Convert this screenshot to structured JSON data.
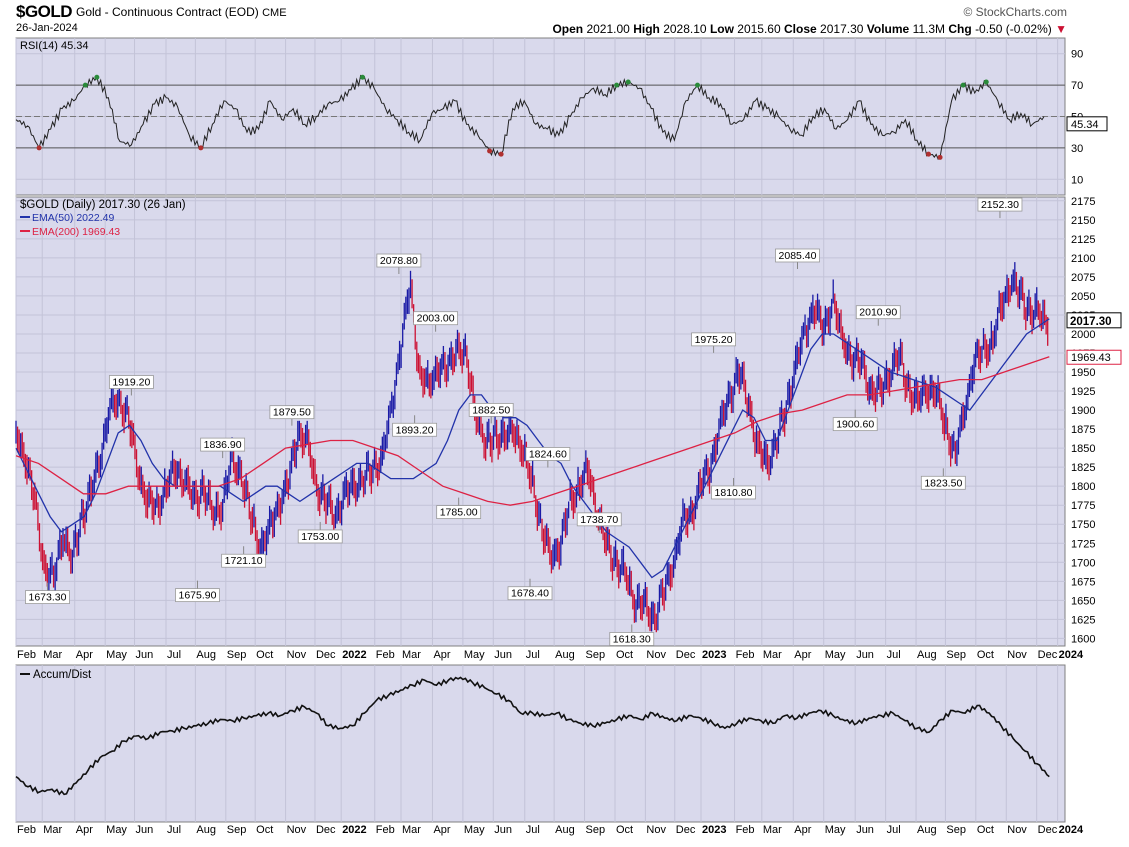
{
  "header": {
    "symbol": "$GOLD",
    "description": "Gold - Continuous Contract (EOD)",
    "exchange": "CME",
    "date": "26-Jan-2024",
    "brand": "© StockCharts.com",
    "open_label": "Open",
    "open": "2021.00",
    "high_label": "High",
    "high": "2028.10",
    "low_label": "Low",
    "low": "2015.60",
    "close_label": "Close",
    "close": "2017.30",
    "volume_label": "Volume",
    "volume": "11.3M",
    "chg_label": "Chg",
    "chg": "-0.50 (-0.02%)",
    "chg_arrow": "▼"
  },
  "colors": {
    "panel_bg": "#d9d9ec",
    "up": "#1a1aa6",
    "down": "#cc1133",
    "ema50": "#2233aa",
    "ema200": "#dd2244",
    "grid": "#c3c3d8"
  },
  "chart_data": [
    {
      "type": "line",
      "panel": "RSI",
      "label": "RSI(14) 45.34",
      "last_value_tag": "45.34",
      "ylim": [
        0,
        100
      ],
      "yticks": [
        "90",
        "70",
        "50",
        "30",
        "10"
      ],
      "levels": [
        70,
        30
      ],
      "series": [
        {
          "name": "RSI(14)",
          "values": [
            48,
            44,
            30,
            42,
            55,
            60,
            70,
            75,
            62,
            34,
            32,
            45,
            58,
            62,
            56,
            38,
            30,
            45,
            60,
            55,
            40,
            42,
            60,
            48,
            55,
            45,
            50,
            58,
            60,
            67,
            75,
            68,
            55,
            48,
            40,
            35,
            52,
            55,
            60,
            45,
            38,
            28,
            26,
            55,
            60,
            45,
            42,
            38,
            50,
            62,
            68,
            64,
            70,
            72,
            68,
            55,
            40,
            35,
            60,
            70,
            62,
            58,
            45,
            48,
            60,
            55,
            50,
            42,
            38,
            50,
            55,
            42,
            48,
            60,
            45,
            38,
            40,
            48,
            35,
            26,
            24,
            60,
            70,
            65,
            72,
            60,
            48,
            52,
            45,
            50
          ]
        }
      ]
    },
    {
      "type": "line",
      "panel": "Price",
      "title": "$GOLD (Daily) 2017.30 (26 Jan)",
      "legend": [
        {
          "name": "EMA(50) 2022.49"
        },
        {
          "name": "EMA(200) 1969.43"
        }
      ],
      "ylim": [
        1590,
        2180
      ],
      "yticks": [
        2175,
        2150,
        2125,
        2100,
        2075,
        2050,
        2025,
        2000,
        1975,
        1950,
        1925,
        1900,
        1875,
        1850,
        1825,
        1800,
        1775,
        1750,
        1725,
        1700,
        1675,
        1650,
        1625,
        1600
      ],
      "last_close_tag": "2017.30",
      "ema200_tag": "1969.43",
      "annotations": [
        {
          "label": "1673.30",
          "x": 0.03,
          "price": 1673.3,
          "pos": "below"
        },
        {
          "label": "1919.20",
          "x": 0.11,
          "price": 1919.2,
          "pos": "above"
        },
        {
          "label": "1675.90",
          "x": 0.173,
          "price": 1675.9,
          "pos": "below"
        },
        {
          "label": "1836.90",
          "x": 0.197,
          "price": 1836.9,
          "pos": "above"
        },
        {
          "label": "1721.10",
          "x": 0.217,
          "price": 1721.1,
          "pos": "below"
        },
        {
          "label": "1879.50",
          "x": 0.263,
          "price": 1879.5,
          "pos": "above"
        },
        {
          "label": "1753.00",
          "x": 0.29,
          "price": 1753.0,
          "pos": "below"
        },
        {
          "label": "2078.80",
          "x": 0.365,
          "price": 2078.8,
          "pos": "above"
        },
        {
          "label": "2003.00",
          "x": 0.4,
          "price": 2003.0,
          "pos": "above"
        },
        {
          "label": "1893.20",
          "x": 0.38,
          "price": 1893.2,
          "pos": "below"
        },
        {
          "label": "1882.50",
          "x": 0.453,
          "price": 1882.5,
          "pos": "above"
        },
        {
          "label": "1785.00",
          "x": 0.422,
          "price": 1785.0,
          "pos": "below"
        },
        {
          "label": "1824.60",
          "x": 0.507,
          "price": 1824.6,
          "pos": "above"
        },
        {
          "label": "1678.40",
          "x": 0.49,
          "price": 1678.4,
          "pos": "below"
        },
        {
          "label": "1738.70",
          "x": 0.556,
          "price": 1738.7,
          "pos": "above"
        },
        {
          "label": "1618.30",
          "x": 0.587,
          "price": 1618.3,
          "pos": "below"
        },
        {
          "label": "1975.20",
          "x": 0.665,
          "price": 1975.2,
          "pos": "above"
        },
        {
          "label": "1810.80",
          "x": 0.684,
          "price": 1810.8,
          "pos": "below"
        },
        {
          "label": "2085.40",
          "x": 0.745,
          "price": 2085.4,
          "pos": "above"
        },
        {
          "label": "2010.90",
          "x": 0.822,
          "price": 2010.9,
          "pos": "above"
        },
        {
          "label": "1900.60",
          "x": 0.8,
          "price": 1900.6,
          "pos": "below"
        },
        {
          "label": "1823.50",
          "x": 0.884,
          "price": 1823.5,
          "pos": "below"
        },
        {
          "label": "2152.30",
          "x": 0.938,
          "price": 2152.3,
          "pos": "above"
        }
      ],
      "series": [
        {
          "name": "$GOLD",
          "values": [
            1870,
            1840,
            1780,
            1700,
            1673,
            1740,
            1700,
            1760,
            1790,
            1840,
            1900,
            1915,
            1890,
            1820,
            1780,
            1770,
            1800,
            1820,
            1810,
            1780,
            1800,
            1760,
            1780,
            1830,
            1820,
            1760,
            1720,
            1740,
            1780,
            1800,
            1870,
            1860,
            1800,
            1780,
            1760,
            1790,
            1800,
            1810,
            1820,
            1840,
            1900,
            1990,
            2060,
            1950,
            1930,
            1960,
            1950,
            1990,
            1960,
            1900,
            1850,
            1870,
            1860,
            1880,
            1840,
            1810,
            1740,
            1710,
            1720,
            1780,
            1800,
            1820,
            1760,
            1720,
            1700,
            1680,
            1650,
            1640,
            1630,
            1660,
            1700,
            1750,
            1770,
            1800,
            1830,
            1880,
            1920,
            1950,
            1910,
            1850,
            1830,
            1860,
            1900,
            1960,
            2000,
            2040,
            2000,
            2050,
            1990,
            1970,
            1960,
            1930,
            1920,
            1950,
            1970,
            1930,
            1910,
            1930,
            1920,
            1880,
            1840,
            1900,
            1960,
            1980,
            1990,
            2040,
            2070,
            2050,
            2030,
            2025,
            2017
          ]
        },
        {
          "name": "EMA(50)",
          "values": [
            1850,
            1820,
            1790,
            1760,
            1740,
            1750,
            1760,
            1790,
            1830,
            1870,
            1880,
            1860,
            1830,
            1810,
            1800,
            1800,
            1800,
            1800,
            1800,
            1790,
            1780,
            1790,
            1800,
            1800,
            1790,
            1780,
            1790,
            1800,
            1810,
            1820,
            1830,
            1830,
            1820,
            1810,
            1810,
            1810,
            1820,
            1830,
            1860,
            1900,
            1920,
            1920,
            1900,
            1890,
            1890,
            1880,
            1860,
            1840,
            1830,
            1800,
            1780,
            1760,
            1740,
            1730,
            1720,
            1700,
            1680,
            1690,
            1720,
            1750,
            1780,
            1810,
            1840,
            1870,
            1900,
            1890,
            1860,
            1860,
            1900,
            1940,
            1980,
            2000,
            2000,
            1990,
            1980,
            1970,
            1960,
            1950,
            1945,
            1940,
            1935,
            1930,
            1920,
            1910,
            1900,
            1920,
            1940,
            1960,
            1980,
            2000,
            2010,
            2020
          ]
        },
        {
          "name": "EMA(200)",
          "values": [
            1840,
            1830,
            1810,
            1790,
            1790,
            1800,
            1800,
            1800,
            1800,
            1800,
            1810,
            1830,
            1850,
            1855,
            1860,
            1860,
            1850,
            1840,
            1820,
            1800,
            1790,
            1780,
            1775,
            1780,
            1790,
            1800,
            1810,
            1820,
            1830,
            1840,
            1850,
            1860,
            1870,
            1885,
            1895,
            1900,
            1910,
            1920,
            1920,
            1925,
            1930,
            1935,
            1940,
            1940,
            1950,
            1960,
            1970
          ]
        }
      ]
    },
    {
      "type": "line",
      "panel": "Accum/Dist",
      "label": "Accum/Dist",
      "series": [
        {
          "name": "Accum/Dist",
          "values": [
            20,
            12,
            8,
            10,
            6,
            15,
            25,
            35,
            40,
            48,
            52,
            50,
            55,
            56,
            58,
            60,
            62,
            65,
            64,
            66,
            68,
            70,
            68,
            72,
            75,
            70,
            60,
            58,
            60,
            70,
            80,
            84,
            88,
            92,
            96,
            92,
            96,
            98,
            94,
            90,
            85,
            80,
            70,
            70,
            68,
            70,
            65,
            62,
            60,
            62,
            65,
            68,
            65,
            70,
            66,
            64,
            68,
            66,
            62,
            58,
            62,
            66,
            64,
            62,
            68,
            66,
            70,
            72,
            68,
            64,
            62,
            66,
            68,
            70,
            64,
            58,
            55,
            65,
            72,
            70,
            76,
            70,
            60,
            50,
            40,
            30,
            20
          ]
        }
      ]
    }
  ],
  "x_axis": {
    "labels": [
      {
        "t": "Feb",
        "b": false,
        "x": 0.0
      },
      {
        "t": "Mar",
        "b": false,
        "x": 0.025
      },
      {
        "t": "Apr",
        "b": false,
        "x": 0.056
      },
      {
        "t": "May",
        "b": false,
        "x": 0.085
      },
      {
        "t": "Jun",
        "b": false,
        "x": 0.113
      },
      {
        "t": "Jul",
        "b": false,
        "x": 0.143
      },
      {
        "t": "Aug",
        "b": false,
        "x": 0.171
      },
      {
        "t": "Sep",
        "b": false,
        "x": 0.2
      },
      {
        "t": "Oct",
        "b": false,
        "x": 0.228
      },
      {
        "t": "Nov",
        "b": false,
        "x": 0.257
      },
      {
        "t": "Dec",
        "b": false,
        "x": 0.285
      },
      {
        "t": "2022",
        "b": true,
        "x": 0.31
      },
      {
        "t": "Feb",
        "b": false,
        "x": 0.342
      },
      {
        "t": "Mar",
        "b": false,
        "x": 0.367
      },
      {
        "t": "Apr",
        "b": false,
        "x": 0.397
      },
      {
        "t": "May",
        "b": false,
        "x": 0.426
      },
      {
        "t": "Jun",
        "b": false,
        "x": 0.455
      },
      {
        "t": "Jul",
        "b": false,
        "x": 0.485
      },
      {
        "t": "Aug",
        "b": false,
        "x": 0.513
      },
      {
        "t": "Sep",
        "b": false,
        "x": 0.542
      },
      {
        "t": "Oct",
        "b": false,
        "x": 0.571
      },
      {
        "t": "Nov",
        "b": false,
        "x": 0.6
      },
      {
        "t": "Dec",
        "b": false,
        "x": 0.628
      },
      {
        "t": "2023",
        "b": true,
        "x": 0.653
      },
      {
        "t": "Feb",
        "b": false,
        "x": 0.685
      },
      {
        "t": "Mar",
        "b": false,
        "x": 0.711
      },
      {
        "t": "Apr",
        "b": false,
        "x": 0.741
      },
      {
        "t": "May",
        "b": false,
        "x": 0.77
      },
      {
        "t": "Jun",
        "b": false,
        "x": 0.8
      },
      {
        "t": "Jul",
        "b": false,
        "x": 0.829
      },
      {
        "t": "Aug",
        "b": false,
        "x": 0.858
      },
      {
        "t": "Sep",
        "b": false,
        "x": 0.886
      },
      {
        "t": "Oct",
        "b": false,
        "x": 0.915
      },
      {
        "t": "Nov",
        "b": false,
        "x": 0.944
      },
      {
        "t": "Dec",
        "b": false,
        "x": 0.973
      },
      {
        "t": "2024",
        "b": true,
        "x": 0.993
      }
    ]
  }
}
